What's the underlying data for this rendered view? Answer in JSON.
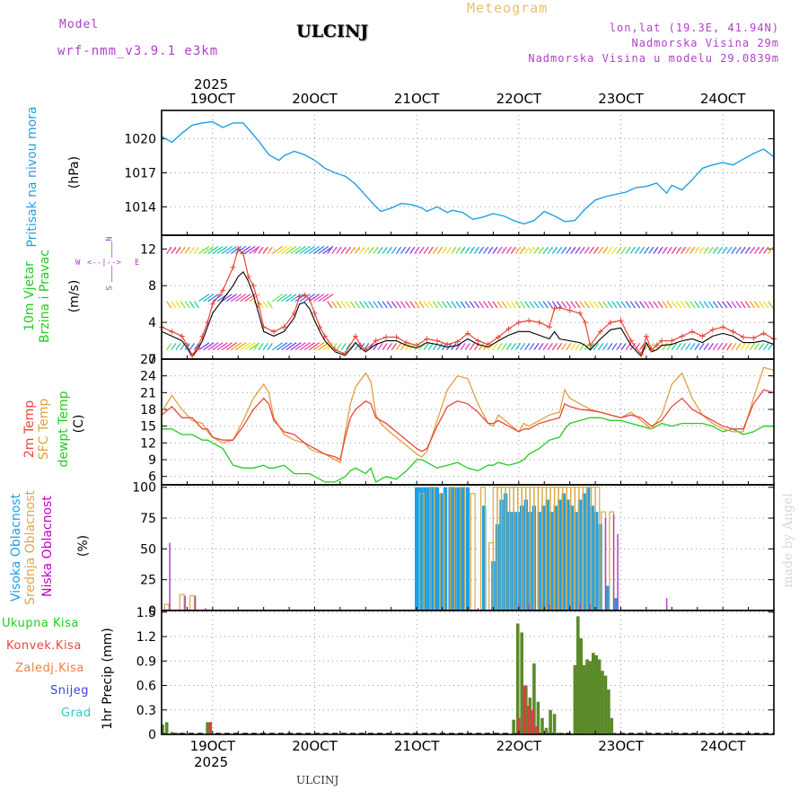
{
  "header": {
    "model_label": "Model",
    "model_name": "wrf-nmm_v3.9.1  e3km",
    "station_title": "ULCINJ",
    "meteogram_label": "Meteogram",
    "lonlat": "lon,lat (19.3E, 41.94N)",
    "elevation": "Nadmorska Visina 29m",
    "model_elevation": "Nadmorska Visina u modelu 29.0839m",
    "year_top": "2025",
    "year_bottom": "2025",
    "footer_station": "ULCINJ",
    "watermark": "made by Angel"
  },
  "colors": {
    "pressure": "#1ea0e6",
    "t2m": "#e8463c",
    "sfc": "#e0a040",
    "dewpt": "#22cc22",
    "wind_speed": "#e8463c",
    "wind_mean": "#000000",
    "cloud_high": "#1ea0e6",
    "cloud_mid": "#d8a848",
    "cloud_low": "#b040c8",
    "precip_total": "#5a8a2a",
    "precip_conv": "#d84040"
  },
  "panel_labels": {
    "pressure": [
      "Pritisak na nivou mora",
      "(hPa)"
    ],
    "wind": [
      "10m Vjetar",
      "Brzina i Pravac",
      "(m/s)"
    ],
    "temp": [
      "2m Temp",
      "SFC Temp",
      "dewpt Temp",
      "(C)"
    ],
    "cloud": [
      "Visoka Oblacnost",
      "Srednja Oblacnost",
      "Niska Oblacnost",
      "(%)"
    ],
    "precip_axis": "1hr Precip (mm)"
  },
  "compass": {
    "n": "N",
    "s": "S",
    "e": "E",
    "w": "W"
  },
  "precip_legend": [
    "Ukupna Kisa",
    "Konvek.Kisa",
    "Zaledj.Kisa",
    "Snijeg",
    "Grad"
  ],
  "chart_data": [
    {
      "type": "line",
      "name": "pressure",
      "title": "Pritisak na nivou mora",
      "ylabel": "(hPa)",
      "x_ticks": [
        "19OCT",
        "20OCT",
        "21OCT",
        "22OCT",
        "23OCT",
        "24OCT"
      ],
      "y_ticks": [
        "1014",
        "1017",
        "1020"
      ],
      "ylim": [
        1011.5,
        1022.5
      ],
      "xlim": [
        18.5,
        24.5
      ],
      "x": [
        18.5,
        18.6,
        18.7,
        18.8,
        18.9,
        19.0,
        19.1,
        19.2,
        19.3,
        19.45,
        19.55,
        19.65,
        19.7,
        19.8,
        19.9,
        20.0,
        20.1,
        20.2,
        20.3,
        20.4,
        20.5,
        20.6,
        20.65,
        20.75,
        20.85,
        20.95,
        21.05,
        21.1,
        21.2,
        21.3,
        21.35,
        21.45,
        21.55,
        21.65,
        21.75,
        21.85,
        21.95,
        22.05,
        22.15,
        22.25,
        22.35,
        22.45,
        22.55,
        22.65,
        22.75,
        22.85,
        22.95,
        23.05,
        23.15,
        23.25,
        23.35,
        23.45,
        23.5,
        23.6,
        23.7,
        23.8,
        23.9,
        24.0,
        24.1,
        24.2,
        24.3,
        24.4,
        24.5
      ],
      "values": [
        1020.2,
        1019.7,
        1020.5,
        1021.2,
        1021.4,
        1021.5,
        1021.0,
        1021.4,
        1021.4,
        1019.8,
        1018.6,
        1018.1,
        1018.5,
        1018.9,
        1018.6,
        1018.1,
        1017.4,
        1017.0,
        1016.7,
        1016.0,
        1015.0,
        1014.0,
        1013.6,
        1013.9,
        1014.3,
        1014.2,
        1013.9,
        1013.6,
        1014.0,
        1013.5,
        1013.7,
        1013.5,
        1012.9,
        1013.1,
        1013.4,
        1013.2,
        1012.8,
        1012.5,
        1012.8,
        1013.6,
        1013.2,
        1012.7,
        1012.8,
        1013.8,
        1014.6,
        1014.9,
        1015.1,
        1015.3,
        1015.7,
        1015.8,
        1016.1,
        1015.2,
        1015.9,
        1015.5,
        1016.4,
        1017.4,
        1017.7,
        1017.9,
        1017.7,
        1018.2,
        1018.7,
        1019.1,
        1018.4
      ]
    },
    {
      "type": "line",
      "name": "wind",
      "title": "10m Vjetar Brzina i Pravac",
      "ylabel": "(m/s)",
      "y_ticks": [
        "0",
        "4",
        "8",
        "12"
      ],
      "ylim": [
        0,
        13.5
      ],
      "xlim": [
        18.5,
        24.5
      ],
      "x": [
        18.5,
        18.6,
        18.7,
        18.75,
        18.8,
        18.85,
        18.9,
        18.95,
        19.0,
        19.1,
        19.2,
        19.25,
        19.3,
        19.35,
        19.4,
        19.45,
        19.5,
        19.6,
        19.7,
        19.8,
        19.85,
        19.9,
        19.95,
        20.0,
        20.05,
        20.1,
        20.2,
        20.3,
        20.4,
        20.45,
        20.5,
        20.6,
        20.7,
        20.8,
        20.9,
        21.0,
        21.1,
        21.2,
        21.3,
        21.4,
        21.5,
        21.6,
        21.7,
        21.8,
        21.9,
        22.0,
        22.1,
        22.2,
        22.3,
        22.35,
        22.4,
        22.5,
        22.6,
        22.65,
        22.7,
        22.8,
        22.9,
        23.0,
        23.1,
        23.2,
        23.25,
        23.3,
        23.35,
        23.4,
        23.5,
        23.6,
        23.7,
        23.8,
        23.9,
        24.0,
        24.1,
        24.2,
        24.3,
        24.4,
        24.5
      ],
      "series": [
        {
          "name": "Brzina",
          "values": [
            3.5,
            3.0,
            2.5,
            1.5,
            0.4,
            1.2,
            2.5,
            4.0,
            6.0,
            7.5,
            10.0,
            12.0,
            11.5,
            9.0,
            8.0,
            6.0,
            3.5,
            3.0,
            3.5,
            5.0,
            6.8,
            7.0,
            6.5,
            5.0,
            3.5,
            2.5,
            1.0,
            0.6,
            2.5,
            1.5,
            1.0,
            2.0,
            2.4,
            2.4,
            1.8,
            1.5,
            2.2,
            2.0,
            1.6,
            1.9,
            2.8,
            2.0,
            1.6,
            2.4,
            3.3,
            4.0,
            4.2,
            4.0,
            3.5,
            5.5,
            5.6,
            5.3,
            5.0,
            4.0,
            1.5,
            3.0,
            4.0,
            4.2,
            2.0,
            0.5,
            2.5,
            1.0,
            1.5,
            2.0,
            2.0,
            2.5,
            3.0,
            2.5,
            3.2,
            3.5,
            3.0,
            2.4,
            2.3,
            2.8,
            2.2
          ]
        },
        {
          "name": "Srednja",
          "values": [
            3.0,
            2.5,
            2.0,
            1.2,
            0.3,
            1.0,
            2.0,
            3.5,
            5.0,
            6.5,
            8.0,
            9.0,
            9.5,
            8.5,
            7.0,
            5.0,
            3.0,
            2.5,
            3.0,
            4.5,
            6.0,
            6.2,
            5.5,
            4.2,
            3.0,
            2.0,
            0.8,
            0.4,
            1.8,
            1.2,
            0.8,
            1.6,
            2.0,
            2.0,
            1.5,
            1.2,
            1.8,
            1.6,
            1.3,
            1.5,
            2.2,
            1.6,
            1.3,
            2.0,
            2.6,
            3.0,
            3.0,
            2.6,
            2.2,
            3.0,
            2.2,
            2.0,
            1.8,
            1.5,
            1.0,
            2.2,
            3.2,
            3.4,
            1.5,
            0.3,
            1.8,
            0.8,
            1.0,
            1.5,
            1.6,
            2.0,
            2.2,
            1.8,
            2.5,
            2.8,
            2.5,
            1.8,
            1.8,
            2.0,
            1.6
          ]
        }
      ],
      "barb_rows": [
        {
          "name": "upper",
          "y": 11.5
        },
        {
          "name": "middle",
          "y": 6.3
        },
        {
          "name": "lower",
          "y": 1.0
        }
      ]
    },
    {
      "type": "line",
      "name": "temperature",
      "title": "2m Temp / SFC Temp / dewpt Temp",
      "ylabel": "(C)",
      "y_ticks": [
        "6",
        "9",
        "12",
        "15",
        "18",
        "21",
        "24",
        "27"
      ],
      "ylim": [
        4.5,
        27
      ],
      "xlim": [
        18.5,
        24.5
      ],
      "x": [
        18.5,
        18.6,
        18.7,
        18.75,
        18.8,
        18.9,
        18.95,
        19.0,
        19.1,
        19.2,
        19.3,
        19.4,
        19.5,
        19.55,
        19.6,
        19.7,
        19.8,
        19.9,
        19.95,
        20.0,
        20.1,
        20.2,
        20.25,
        20.3,
        20.35,
        20.4,
        20.5,
        20.55,
        20.6,
        20.65,
        20.7,
        20.8,
        20.9,
        21.0,
        21.05,
        21.1,
        21.2,
        21.3,
        21.4,
        21.5,
        21.6,
        21.7,
        21.75,
        21.8,
        21.9,
        22.0,
        22.05,
        22.1,
        22.2,
        22.3,
        22.4,
        22.45,
        22.5,
        22.6,
        22.7,
        22.8,
        22.9,
        23.0,
        23.1,
        23.2,
        23.3,
        23.4,
        23.5,
        23.6,
        23.7,
        23.8,
        23.9,
        24.0,
        24.1,
        24.2,
        24.3,
        24.4,
        24.5
      ],
      "series": [
        {
          "name": "2m Temp",
          "values": [
            17.0,
            18.5,
            16.5,
            16.5,
            16.5,
            14.5,
            14.5,
            13.0,
            12.5,
            12.5,
            15.0,
            18.0,
            20.0,
            19.0,
            16.0,
            14.0,
            13.5,
            12.0,
            11.5,
            11.0,
            10.0,
            9.5,
            9.0,
            13.0,
            16.5,
            18.0,
            19.5,
            19.0,
            16.5,
            16.0,
            15.5,
            14.0,
            12.5,
            11.0,
            10.5,
            11.0,
            15.0,
            18.5,
            19.5,
            19.0,
            17.5,
            15.5,
            15.5,
            16.0,
            15.0,
            14.0,
            14.5,
            14.5,
            15.5,
            16.0,
            16.5,
            19.0,
            18.5,
            18.0,
            17.8,
            17.5,
            17.0,
            16.5,
            17.0,
            16.5,
            15.0,
            16.0,
            18.5,
            20.0,
            18.0,
            17.0,
            16.0,
            15.0,
            14.5,
            14.5,
            19.0,
            21.5,
            21.0
          ]
        },
        {
          "name": "SFC Temp",
          "values": [
            17.5,
            20.5,
            18.0,
            17.0,
            16.0,
            15.5,
            14.0,
            13.0,
            12.0,
            12.5,
            16.0,
            20.0,
            22.5,
            21.0,
            16.5,
            13.5,
            12.5,
            12.0,
            11.0,
            10.5,
            10.0,
            9.0,
            8.5,
            14.0,
            19.0,
            22.0,
            24.5,
            23.0,
            17.0,
            15.5,
            14.5,
            13.0,
            11.5,
            10.0,
            9.5,
            10.5,
            16.0,
            21.5,
            24.0,
            23.5,
            19.0,
            15.5,
            15.0,
            17.0,
            15.5,
            14.0,
            15.5,
            15.0,
            16.0,
            17.0,
            17.5,
            21.5,
            20.0,
            19.0,
            18.0,
            17.5,
            17.0,
            16.5,
            17.5,
            16.0,
            14.5,
            17.0,
            22.5,
            24.5,
            20.0,
            17.0,
            15.5,
            14.5,
            14.0,
            14.0,
            20.0,
            25.5,
            25.0
          ]
        },
        {
          "name": "dewpt Temp",
          "values": [
            14.5,
            14.5,
            13.5,
            13.5,
            13.5,
            12.5,
            12.5,
            12.0,
            11.0,
            8.0,
            7.5,
            7.5,
            8.0,
            7.5,
            7.5,
            8.0,
            6.5,
            6.5,
            6.5,
            6.0,
            5.0,
            5.0,
            5.5,
            6.0,
            7.0,
            7.5,
            6.5,
            7.5,
            5.0,
            5.5,
            6.0,
            5.5,
            7.0,
            9.0,
            9.0,
            8.5,
            7.5,
            8.0,
            8.5,
            7.5,
            7.0,
            8.0,
            8.0,
            8.5,
            8.0,
            8.5,
            9.0,
            10.0,
            11.0,
            12.5,
            13.0,
            14.5,
            15.5,
            16.0,
            16.5,
            16.5,
            16.0,
            16.0,
            15.5,
            15.0,
            14.5,
            15.5,
            15.0,
            15.5,
            15.5,
            15.5,
            15.0,
            14.0,
            14.5,
            13.5,
            14.0,
            15.0,
            15.0
          ]
        }
      ]
    },
    {
      "type": "bar",
      "name": "cloud_cover",
      "title": "Visoka / Srednja / Niska Oblacnost",
      "ylabel": "(%)",
      "y_ticks": [
        "0",
        "25",
        "50",
        "75",
        "100"
      ],
      "ylim": [
        0,
        102
      ],
      "xlim": [
        18.5,
        24.5
      ],
      "series": [
        {
          "name": "Visoka Oblacnost",
          "x": [
            21.0,
            21.04,
            21.08,
            21.12,
            21.16,
            21.2,
            21.24,
            21.28,
            21.33,
            21.37,
            21.41,
            21.45,
            21.5,
            21.66,
            21.75,
            21.79,
            21.83,
            21.87,
            21.91,
            21.95,
            21.99,
            22.03,
            22.07,
            22.11,
            22.15,
            22.2,
            22.24,
            22.28,
            22.32,
            22.36,
            22.4,
            22.44,
            22.48,
            22.52,
            22.56,
            22.6,
            22.64,
            22.68,
            22.72,
            22.76,
            22.8,
            22.87,
            22.95
          ],
          "values": [
            100,
            100,
            100,
            100,
            100,
            100,
            95,
            100,
            100,
            100,
            100,
            100,
            100,
            85,
            40,
            70,
            90,
            95,
            80,
            80,
            80,
            85,
            90,
            80,
            85,
            80,
            85,
            90,
            80,
            85,
            90,
            95,
            90,
            85,
            80,
            90,
            95,
            100,
            85,
            80,
            70,
            20,
            10
          ]
        },
        {
          "name": "Srednja Oblacnost",
          "x": [
            18.55,
            18.7,
            18.8,
            21.05,
            21.15,
            21.25,
            21.35,
            21.45,
            21.55,
            21.65,
            21.73,
            21.77,
            21.81,
            21.85,
            21.89,
            21.93,
            21.97,
            22.01,
            22.05,
            22.09,
            22.13,
            22.17,
            22.21,
            22.25,
            22.29,
            22.33,
            22.37,
            22.41,
            22.45,
            22.49,
            22.53,
            22.57,
            22.61,
            22.65,
            22.69,
            22.73,
            22.77,
            22.83,
            22.91
          ],
          "values": [
            5,
            13,
            12,
            95,
            100,
            95,
            100,
            100,
            95,
            100,
            55,
            100,
            100,
            100,
            100,
            100,
            100,
            100,
            100,
            100,
            100,
            100,
            100,
            100,
            100,
            100,
            100,
            100,
            100,
            100,
            100,
            100,
            100,
            100,
            100,
            100,
            100,
            80,
            80
          ]
        },
        {
          "name": "Niska Oblacnost",
          "x": [
            18.58,
            18.73,
            18.83,
            18.93,
            21.6,
            22.0,
            22.1,
            22.3,
            22.5,
            22.6,
            22.7,
            22.85,
            22.93,
            22.97,
            23.45
          ],
          "values": [
            55,
            12,
            12,
            2,
            2,
            5,
            5,
            5,
            5,
            5,
            5,
            75,
            78,
            62,
            10
          ]
        }
      ]
    },
    {
      "type": "bar",
      "name": "precipitation",
      "title": "1hr Precip (mm)",
      "ylabel": "1hr Precip (mm)",
      "y_ticks": [
        "0",
        "0.3",
        "0.6",
        "0.9",
        "1.2",
        "1.5"
      ],
      "ylim": [
        0,
        1.52
      ],
      "xlim": [
        18.5,
        24.5
      ],
      "series": [
        {
          "name": "Ukupna Kisa",
          "x": [
            18.51,
            18.55,
            18.6,
            18.65,
            18.95,
            21.95,
            21.99,
            22.03,
            22.07,
            22.11,
            22.15,
            22.19,
            22.23,
            22.27,
            22.31,
            22.35,
            22.39,
            22.43,
            22.55,
            22.58,
            22.61,
            22.64,
            22.67,
            22.7,
            22.73,
            22.76,
            22.79,
            22.82,
            22.85,
            22.88,
            22.91,
            22.94,
            22.97
          ],
          "values": [
            0.12,
            0.15,
            0.03,
            0.02,
            0.15,
            0.18,
            1.36,
            1.25,
            0.6,
            0.45,
            0.87,
            0.4,
            0.2,
            0.08,
            0.3,
            0.25,
            0.02,
            0.02,
            0.85,
            1.45,
            1.18,
            0.85,
            0.92,
            0.9,
            1.0,
            0.97,
            0.92,
            0.78,
            0.72,
            0.55,
            0.2,
            0.02,
            0.01
          ]
        },
        {
          "name": "Konvek.Kisa",
          "x": [
            18.96,
            21.98,
            22.04,
            22.08,
            22.12,
            22.16
          ],
          "values": [
            0.15,
            0.2,
            0.6,
            0.35,
            0.3,
            0.1
          ]
        }
      ]
    }
  ]
}
